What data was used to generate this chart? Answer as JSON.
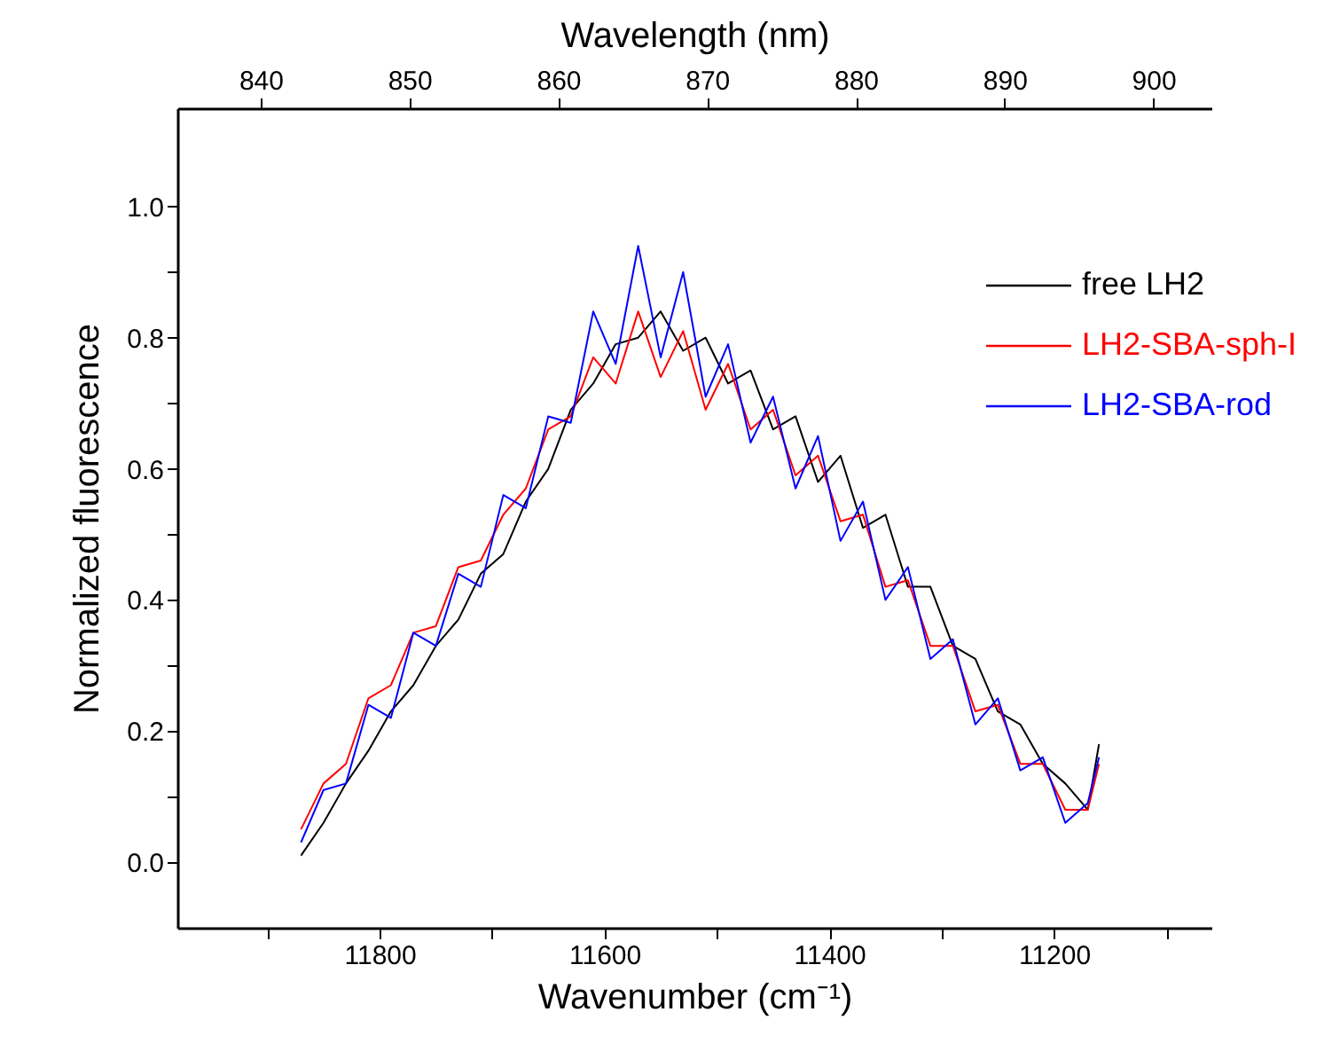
{
  "chart_data": {
    "type": "line",
    "xlabel": "Wavenumber (cm⁻¹)",
    "ylabel": "Normalized fluorescence",
    "x2label": "Wavelength (nm)",
    "x": [
      11870,
      11850,
      11830,
      11810,
      11790,
      11770,
      11750,
      11730,
      11710,
      11690,
      11670,
      11650,
      11630,
      11610,
      11590,
      11570,
      11550,
      11530,
      11510,
      11490,
      11470,
      11450,
      11430,
      11410,
      11390,
      11370,
      11350,
      11330,
      11310,
      11290,
      11270,
      11250,
      11230,
      11210,
      11190,
      11170,
      11160
    ],
    "series": [
      {
        "name": "free LH2",
        "color": "#000000",
        "values": [
          0.01,
          0.06,
          0.12,
          0.17,
          0.23,
          0.27,
          0.33,
          0.37,
          0.44,
          0.47,
          0.55,
          0.6,
          0.69,
          0.73,
          0.79,
          0.8,
          0.84,
          0.78,
          0.8,
          0.73,
          0.75,
          0.66,
          0.68,
          0.58,
          0.62,
          0.51,
          0.53,
          0.42,
          0.42,
          0.33,
          0.31,
          0.23,
          0.21,
          0.15,
          0.12,
          0.08,
          0.18
        ]
      },
      {
        "name": "LH2-SBA-sph-I",
        "color": "#ff0000",
        "values": [
          0.05,
          0.12,
          0.15,
          0.25,
          0.27,
          0.35,
          0.36,
          0.45,
          0.46,
          0.53,
          0.57,
          0.66,
          0.68,
          0.77,
          0.73,
          0.84,
          0.74,
          0.81,
          0.69,
          0.76,
          0.66,
          0.69,
          0.59,
          0.62,
          0.52,
          0.53,
          0.42,
          0.43,
          0.33,
          0.33,
          0.23,
          0.24,
          0.15,
          0.15,
          0.08,
          0.08,
          0.15
        ]
      },
      {
        "name": "LH2-SBA-rod",
        "color": "#0000ff",
        "values": [
          0.03,
          0.11,
          0.12,
          0.24,
          0.22,
          0.35,
          0.33,
          0.44,
          0.42,
          0.56,
          0.54,
          0.68,
          0.67,
          0.84,
          0.76,
          0.94,
          0.77,
          0.9,
          0.71,
          0.79,
          0.64,
          0.71,
          0.57,
          0.65,
          0.49,
          0.55,
          0.4,
          0.45,
          0.31,
          0.34,
          0.21,
          0.25,
          0.14,
          0.16,
          0.06,
          0.09,
          0.16
        ]
      }
    ],
    "xlim": [
      11980,
      11060
    ],
    "xticks": [
      {
        "value": 11900,
        "label": null
      },
      11800,
      {
        "value": 11700,
        "label": null
      },
      11600,
      {
        "value": 11500,
        "label": null
      },
      11400,
      {
        "value": 11300,
        "label": null
      },
      11200,
      {
        "value": 11100,
        "label": null
      }
    ],
    "ylim": [
      -0.1,
      1.15
    ],
    "yticks": [
      {
        "value": 0,
        "label": "0.0"
      },
      {
        "value": 0.1,
        "label": null
      },
      {
        "value": 0.2,
        "label": "0.2"
      },
      {
        "value": 0.3,
        "label": null
      },
      {
        "value": 0.4,
        "label": "0.4"
      },
      {
        "value": 0.5,
        "label": null
      },
      {
        "value": 0.6,
        "label": "0.6"
      },
      {
        "value": 0.7,
        "label": null
      },
      {
        "value": 0.8,
        "label": "0.8"
      },
      {
        "value": 0.9,
        "label": null
      },
      {
        "value": 1,
        "label": "1.0"
      }
    ],
    "x2lim": [
      834.4,
      903.9
    ],
    "x2ticks": [
      840,
      850,
      860,
      870,
      880,
      890,
      900
    ],
    "legend": "top right"
  }
}
